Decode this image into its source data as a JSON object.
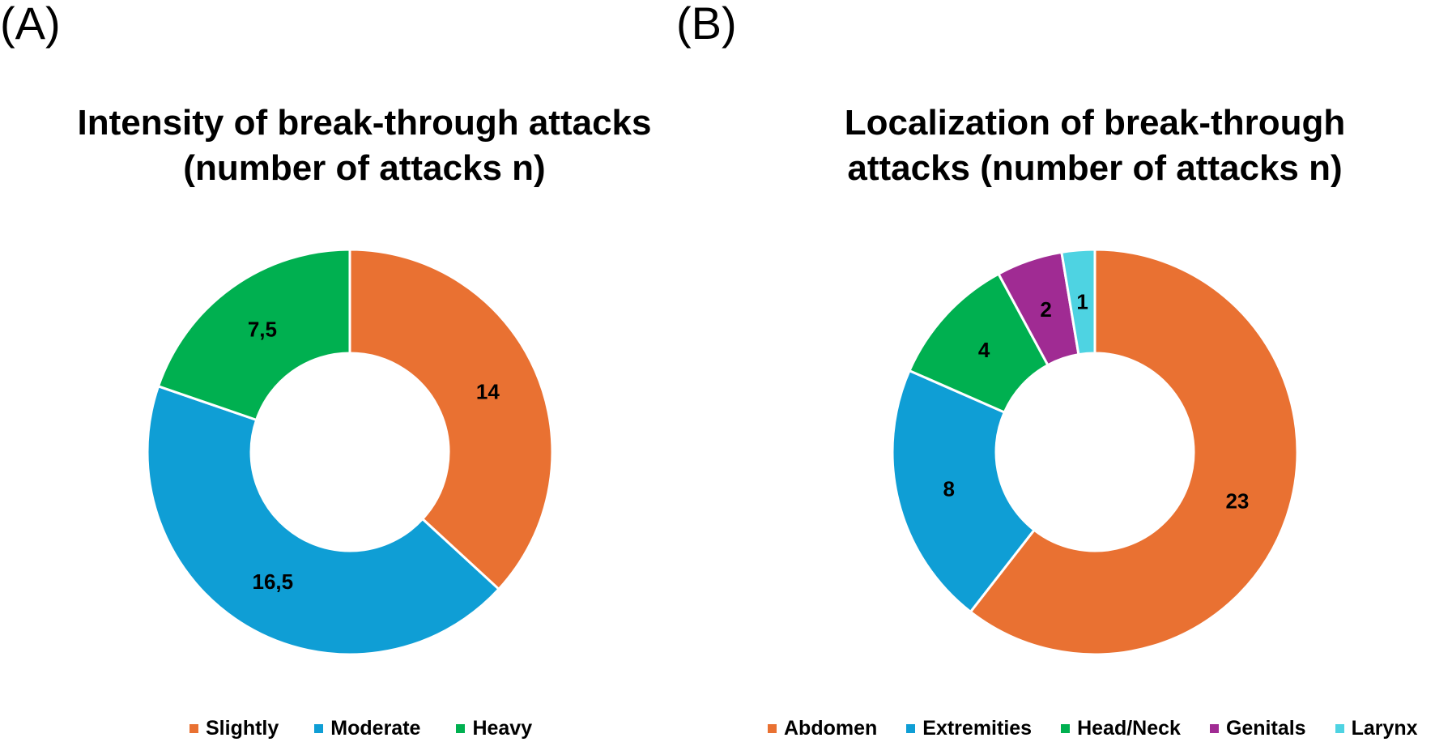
{
  "panels": {
    "a": {
      "label": "(A)"
    },
    "b": {
      "label": "(B)"
    }
  },
  "chart_data": [
    {
      "type": "pie",
      "subtype": "donut",
      "title_lines": [
        "Intensity of break-through attacks",
        "(number of attacks n)"
      ],
      "categories": [
        "Slightly",
        "Moderate",
        "Heavy"
      ],
      "values": [
        14,
        16.5,
        7.5
      ],
      "data_labels": [
        "14",
        "16,5",
        "7,5"
      ],
      "colors": [
        "#E97132",
        "#0F9ED5",
        "#00B050"
      ],
      "legend_position": "bottom"
    },
    {
      "type": "pie",
      "subtype": "donut",
      "title_lines": [
        "Localization of break-through",
        "attacks (number of attacks n)"
      ],
      "categories": [
        "Abdomen",
        "Extremities",
        "Head/Neck",
        "Genitals",
        "Larynx"
      ],
      "values": [
        23,
        8,
        4,
        2,
        1
      ],
      "data_labels": [
        "23",
        "8",
        "4",
        "2",
        "1"
      ],
      "colors": [
        "#E97132",
        "#0F9ED5",
        "#00B050",
        "#A02B93",
        "#4ED3E2"
      ],
      "legend_position": "bottom"
    }
  ]
}
